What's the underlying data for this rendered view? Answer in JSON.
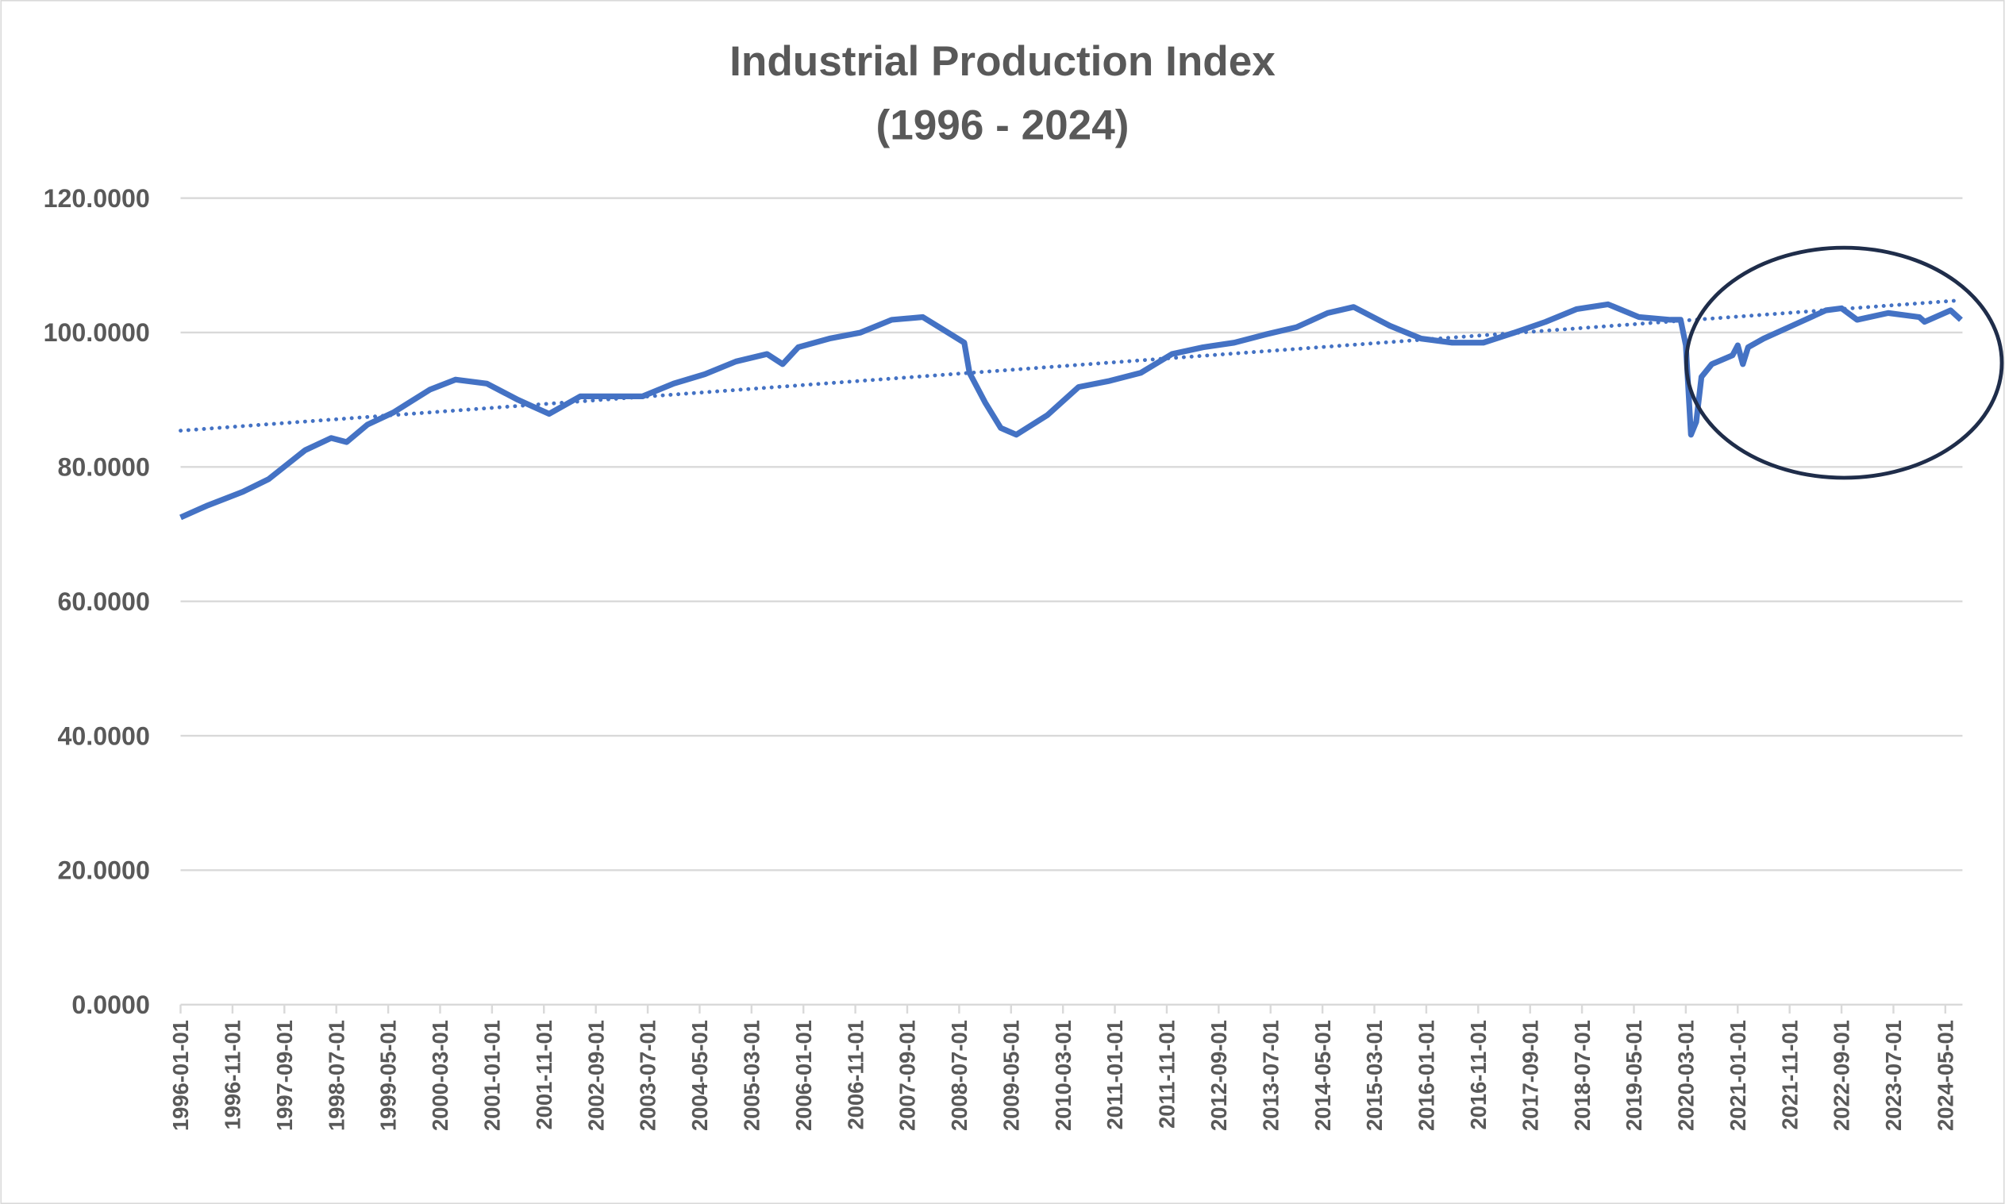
{
  "chart_data": {
    "type": "line",
    "title": "Industrial Production Index",
    "subtitle": "(1996 - 2024)",
    "xlabel": "",
    "ylabel": "",
    "ylim": [
      0,
      120
    ],
    "yticks": [
      "0.0000",
      "20.0000",
      "40.0000",
      "60.0000",
      "80.0000",
      "100.0000",
      "120.0000"
    ],
    "ytick_values": [
      0,
      20,
      40,
      60,
      80,
      100,
      120
    ],
    "xticks": [
      "1996-01-01",
      "1996-11-01",
      "1997-09-01",
      "1998-07-01",
      "1999-05-01",
      "2000-03-01",
      "2001-01-01",
      "2001-11-01",
      "2002-09-01",
      "2003-07-01",
      "2004-05-01",
      "2005-03-01",
      "2006-01-01",
      "2006-11-01",
      "2007-09-01",
      "2008-07-01",
      "2009-05-01",
      "2010-03-01",
      "2011-01-01",
      "2011-11-01",
      "2012-09-01",
      "2013-07-01",
      "2014-05-01",
      "2015-03-01",
      "2016-01-01",
      "2016-11-01",
      "2017-09-01",
      "2018-07-01",
      "2019-05-01",
      "2020-03-01",
      "2021-01-01",
      "2021-11-01",
      "2022-09-01",
      "2023-07-01",
      "2024-05-01"
    ],
    "xlim": [
      "1996-01-01",
      "2024-08-01"
    ],
    "grid": "horizontal",
    "legend": "none",
    "colors": {
      "series": "#4472C4",
      "trend": "#4472C4",
      "annotation": "#1F2D4A",
      "text": "#595959",
      "grid": "#D9D9D9"
    },
    "series": [
      {
        "x": [
          "1996-01",
          "1996-06",
          "1997-01",
          "1997-06",
          "1998-01",
          "1998-06",
          "1998-09",
          "1999-01",
          "1999-06",
          "2000-01",
          "2000-06",
          "2000-12",
          "2001-06",
          "2001-12",
          "2002-06",
          "2002-12",
          "2003-06",
          "2003-12",
          "2004-06",
          "2004-12",
          "2005-06",
          "2005-09",
          "2005-12",
          "2006-06",
          "2006-12",
          "2007-06",
          "2007-12",
          "2008-04",
          "2008-08",
          "2008-09",
          "2008-12",
          "2009-03",
          "2009-06",
          "2009-12",
          "2010-06",
          "2010-12",
          "2011-06",
          "2011-12",
          "2012-06",
          "2012-12",
          "2013-06",
          "2013-12",
          "2014-06",
          "2014-11",
          "2015-06",
          "2015-12",
          "2016-06",
          "2016-12",
          "2017-06",
          "2017-12",
          "2018-06",
          "2018-12",
          "2019-06",
          "2019-12",
          "2020-02",
          "2020-03",
          "2020-04",
          "2020-05",
          "2020-06",
          "2020-08",
          "2020-12",
          "2021-01",
          "2021-02",
          "2021-03",
          "2021-06",
          "2021-12",
          "2022-06",
          "2022-09",
          "2022-12",
          "2023-06",
          "2023-12",
          "2024-01",
          "2024-06",
          "2024-08"
        ],
        "y": [
          72.5,
          74.2,
          76.3,
          78.2,
          82.5,
          84.3,
          83.7,
          86.3,
          88.1,
          91.5,
          93.0,
          92.4,
          90.0,
          87.9,
          90.5,
          90.5,
          90.5,
          92.4,
          93.8,
          95.7,
          96.8,
          95.3,
          97.8,
          99.1,
          100.0,
          101.9,
          102.3,
          100.4,
          98.5,
          94.0,
          89.6,
          85.8,
          84.8,
          87.7,
          91.9,
          92.8,
          94.0,
          96.8,
          97.8,
          98.5,
          99.7,
          100.8,
          102.9,
          103.8,
          101.0,
          99.1,
          98.5,
          98.5,
          100.0,
          101.6,
          103.5,
          104.2,
          102.3,
          101.9,
          101.9,
          98.1,
          84.8,
          86.7,
          93.4,
          95.3,
          96.6,
          98.1,
          95.3,
          97.8,
          99.1,
          101.2,
          103.3,
          103.6,
          101.9,
          102.9,
          102.3,
          101.6,
          103.3,
          101.9
        ]
      }
    ],
    "trendline": {
      "type": "linear",
      "style": "dotted",
      "start": {
        "x": "1996-01",
        "y": 85.4
      },
      "end": {
        "x": "2024-08",
        "y": 104.8
      }
    },
    "annotation": {
      "type": "ellipse",
      "around": [
        "2020-09",
        "2024-08"
      ]
    }
  }
}
